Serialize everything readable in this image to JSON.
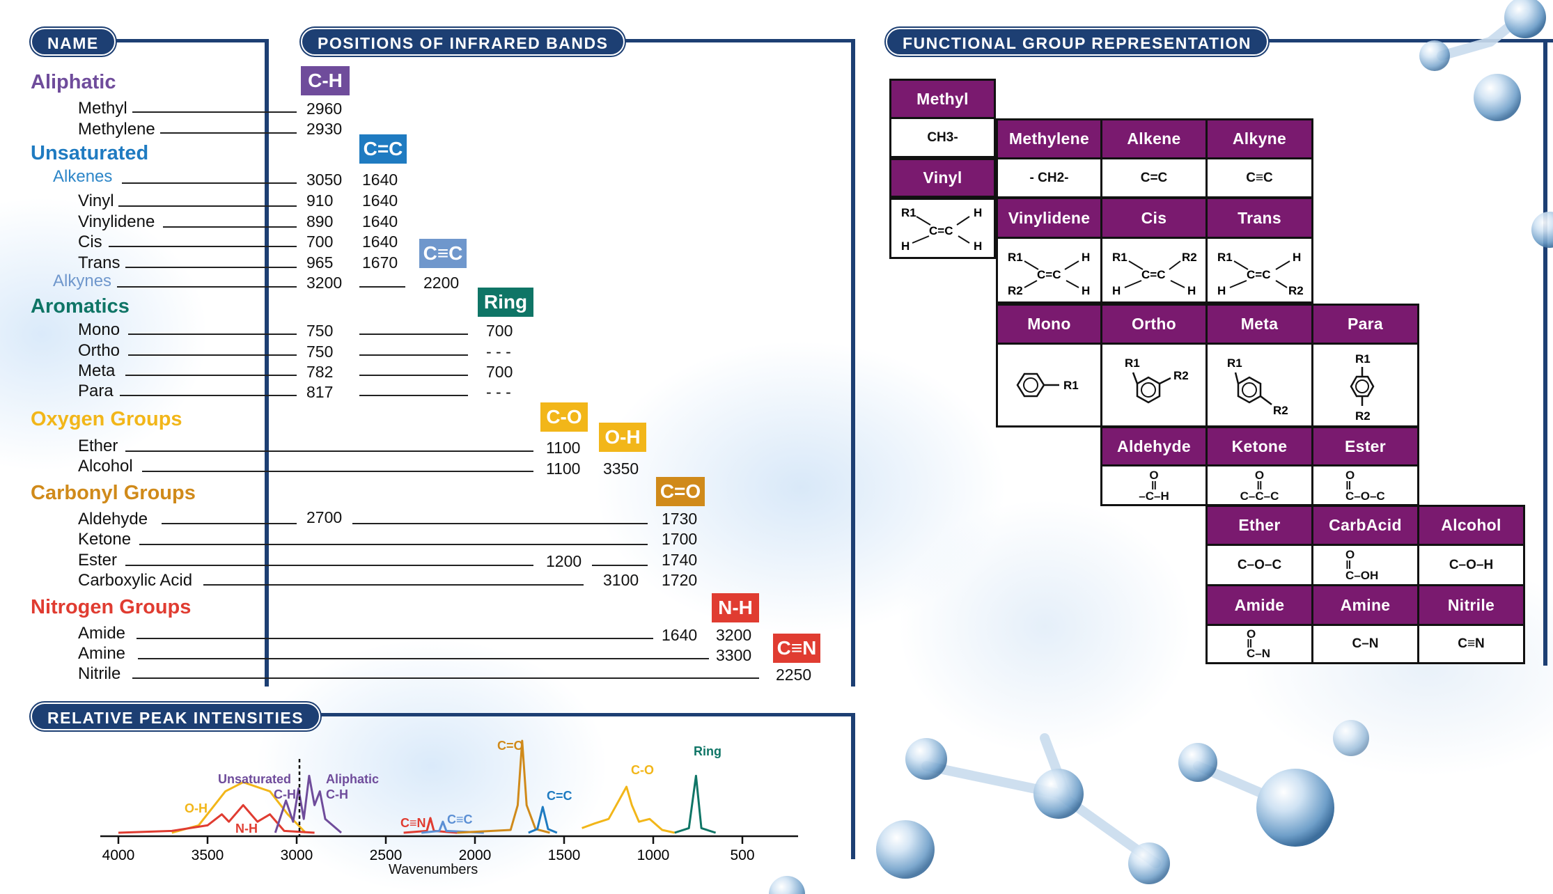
{
  "headers": {
    "name": "NAME",
    "positions": "POSITIONS OF INFRARED BANDS",
    "functional": "FUNCTIONAL GROUP REPRESENTATION",
    "intensities": "RELATIVE PEAK INTENSITIES"
  },
  "categories": {
    "aliphatic": "Aliphatic",
    "unsaturated": "Unsaturated",
    "alkenes": "Alkenes",
    "alkynes": "Alkynes",
    "aromatics": "Aromatics",
    "oxygen": "Oxygen Groups",
    "carbonyl": "Carbonyl Groups",
    "nitrogen": "Nitrogen Groups"
  },
  "names": {
    "methyl": "Methyl",
    "methylene": "Methylene",
    "vinyl": "Vinyl",
    "vinylidene": "Vinylidene",
    "cis": "Cis",
    "trans": "Trans",
    "mono": "Mono",
    "ortho": "Ortho",
    "meta": "Meta",
    "para": "Para",
    "ether": "Ether",
    "alcohol": "Alcohol",
    "aldehyde": "Aldehyde",
    "ketone": "Ketone",
    "ester": "Ester",
    "carboxylic": "Carboxylic Acid",
    "amide": "Amide",
    "amine": "Amine",
    "nitrile": "Nitrile"
  },
  "bands": {
    "ch": "C-H",
    "cc_double": "C=C",
    "cc_triple": "C≡C",
    "ring": "Ring",
    "co": "C-O",
    "oh": "O-H",
    "c_double_o": "C=O",
    "nh": "N-H",
    "cn_triple": "C≡N"
  },
  "colors": {
    "navy": "#1d3f73",
    "aliphatic": "#6f4c9b",
    "unsaturated": "#1f7bc1",
    "alkenes": "#2d86c8",
    "alkynes": "#6f97cc",
    "aromatics": "#0f7566",
    "oxygen": "#f2b619",
    "carbonyl": "#d08a1a",
    "nitrogen": "#e03c31",
    "table_header": "#7a1a6f"
  },
  "values": {
    "methyl": "2960",
    "methylene": "2930",
    "alkenes_ch": "3050",
    "alkenes_cc": "1640",
    "vinyl_ch": "910",
    "vinyl_cc": "1640",
    "vinylidene_ch": "890",
    "vinylidene_cc": "1640",
    "cis_ch": "700",
    "cis_cc": "1640",
    "trans_ch": "965",
    "trans_cc": "1670",
    "alkynes_ch": "3200",
    "alkynes_ccc": "2200",
    "mono_ch": "750",
    "mono_ring": "700",
    "ortho_ch": "750",
    "ortho_ring": "- - -",
    "meta_ch": "782",
    "meta_ring": "700",
    "para_ch": "817",
    "para_ring": "- - -",
    "ether_co": "1100",
    "alcohol_co": "1100",
    "alcohol_oh": "3350",
    "aldehyde_ch": "2700",
    "aldehyde_co": "1730",
    "ketone_co": "1700",
    "ester_c_o": "1200",
    "ester_co": "1740",
    "carboxylic_oh": "3100",
    "carboxylic_co": "1720",
    "amide_co": "1640",
    "amide_nh": "3200",
    "amine_nh": "3300",
    "nitrile_cn": "2250"
  },
  "fg_table": {
    "methyl": {
      "label": "Methyl",
      "formula": "CH3-"
    },
    "vinyl": {
      "label": "Vinyl"
    },
    "methylene": {
      "label": "Methylene",
      "formula": "- CH2-"
    },
    "alkene": {
      "label": "Alkene",
      "formula": "C=C"
    },
    "alkyne": {
      "label": "Alkyne",
      "formula": "C≡C"
    },
    "vinylidene": {
      "label": "Vinylidene"
    },
    "cis": {
      "label": "Cis"
    },
    "trans": {
      "label": "Trans"
    },
    "mono": {
      "label": "Mono"
    },
    "ortho": {
      "label": "Ortho"
    },
    "meta": {
      "label": "Meta"
    },
    "para": {
      "label": "Para"
    },
    "aldehyde": {
      "label": "Aldehyde",
      "formula": "–C–H"
    },
    "ketone": {
      "label": "Ketone",
      "formula": "C–C–C"
    },
    "ester": {
      "label": "Ester",
      "formula": "C–O–C"
    },
    "ether": {
      "label": "Ether",
      "formula": "C–O–C"
    },
    "carbacid": {
      "label": "CarbAcid",
      "formula": "C–OH"
    },
    "alcohol": {
      "label": "Alcohol",
      "formula": "C–O–H"
    },
    "amide": {
      "label": "Amide",
      "formula": "C–N"
    },
    "amine": {
      "label": "Amine",
      "formula": "C–N"
    },
    "nitrile": {
      "label": "Nitrile",
      "formula": "C≡N"
    },
    "labels": {
      "r1": "R1",
      "r2": "R2",
      "h": "H",
      "o": "O",
      "cc": "C=C"
    }
  },
  "chart_data": {
    "type": "line",
    "xlabel": "Wavenumbers",
    "xlim": [
      4000,
      250
    ],
    "ticks": [
      "4000",
      "3500",
      "3000",
      "2500",
      "2000",
      "1500",
      "1000",
      "500"
    ],
    "peak_labels": {
      "oh": "O-H",
      "nh": "N-H",
      "unsat": "Unsaturated",
      "unsat_ch": "C-H",
      "aliph": "Aliphatic",
      "aliph_ch": "C-H",
      "cn": "C≡N",
      "cc_triple": "C≡C",
      "c_double_o": "C=O",
      "cc_double": "C=C",
      "co": "C-O",
      "ring": "Ring"
    },
    "series": [
      {
        "color": "#f2b619",
        "points": [
          [
            3700,
            0
          ],
          [
            3550,
            0.08
          ],
          [
            3400,
            0.45
          ],
          [
            3300,
            0.55
          ],
          [
            3150,
            0.45
          ],
          [
            3050,
            0.2
          ],
          [
            2950,
            0
          ]
        ]
      },
      {
        "color": "#e03c31",
        "points": [
          [
            4000,
            0
          ],
          [
            3700,
            0.02
          ],
          [
            3500,
            0.08
          ],
          [
            3420,
            0.2
          ],
          [
            3380,
            0.12
          ],
          [
            3300,
            0.3
          ],
          [
            3220,
            0.12
          ],
          [
            3150,
            0.2
          ],
          [
            3070,
            0.02
          ],
          [
            2900,
            0
          ]
        ]
      },
      {
        "color": "#6f4c9b",
        "points": [
          [
            3120,
            0
          ],
          [
            3060,
            0.35
          ],
          [
            3020,
            0.12
          ],
          [
            2990,
            0.48
          ],
          [
            2960,
            0.15
          ],
          [
            2930,
            0.62
          ],
          [
            2900,
            0.3
          ],
          [
            2870,
            0.45
          ],
          [
            2840,
            0.15
          ],
          [
            2750,
            0
          ]
        ]
      },
      {
        "color": "#e03c31",
        "points": [
          [
            2400,
            0
          ],
          [
            2270,
            0.02
          ],
          [
            2250,
            0.16
          ],
          [
            2230,
            0.02
          ],
          [
            2100,
            0
          ]
        ]
      },
      {
        "color": "#5b8fd4",
        "points": [
          [
            2300,
            0
          ],
          [
            2200,
            0.02
          ],
          [
            2180,
            0.12
          ],
          [
            2160,
            0.02
          ],
          [
            1950,
            0
          ]
        ]
      },
      {
        "color": "#d08a1a",
        "points": [
          [
            2100,
            0
          ],
          [
            1800,
            0.03
          ],
          [
            1760,
            0.3
          ],
          [
            1735,
            1.0
          ],
          [
            1710,
            0.3
          ],
          [
            1660,
            0.04
          ],
          [
            1580,
            0
          ]
        ]
      },
      {
        "color": "#1f7bc1",
        "points": [
          [
            1700,
            0
          ],
          [
            1650,
            0.04
          ],
          [
            1620,
            0.28
          ],
          [
            1590,
            0.04
          ],
          [
            1540,
            0
          ]
        ]
      },
      {
        "color": "#f2b619",
        "points": [
          [
            1400,
            0.05
          ],
          [
            1330,
            0.1
          ],
          [
            1250,
            0.15
          ],
          [
            1150,
            0.5
          ],
          [
            1120,
            0.3
          ],
          [
            1080,
            0.12
          ],
          [
            1020,
            0.15
          ],
          [
            950,
            0.03
          ],
          [
            880,
            0
          ]
        ]
      },
      {
        "color": "#0f7566",
        "points": [
          [
            880,
            0
          ],
          [
            800,
            0.05
          ],
          [
            760,
            0.62
          ],
          [
            730,
            0.05
          ],
          [
            650,
            0
          ]
        ]
      }
    ]
  }
}
